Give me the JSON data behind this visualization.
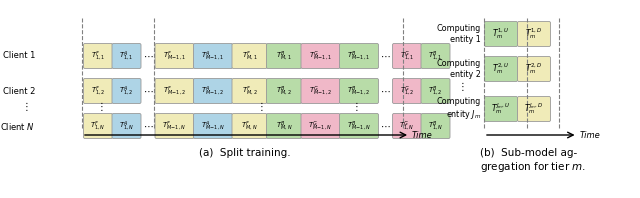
{
  "fig_width": 6.4,
  "fig_height": 1.98,
  "bg_color": "#ffffff",
  "panel_a": {
    "title": "(a)  Split training.",
    "color_F": "#f0ebb8",
    "color_A": "#aed4e6",
    "color_B": "#b8dca8",
    "color_G": "#f0b8c8",
    "rows": [
      {
        "label": "Client 1",
        "blocks": [
          {
            "text": "$T_{1,1}^{F}$",
            "color": "F"
          },
          {
            "text": "$T_{1,1}^{A}$",
            "color": "A"
          },
          {
            "dots": true
          },
          {
            "text": "$T_{M\\!-\\!1,1}^{F}$",
            "color": "F"
          },
          {
            "text": "$T_{M\\!-\\!1,1}^{A}$",
            "color": "A"
          },
          {
            "text": "$T_{M,1}^{F}$",
            "color": "F"
          },
          {
            "text": "$T_{M,1}^{B}$",
            "color": "B"
          },
          {
            "text": "$T_{M\\!-\\!1,1}^{G}$",
            "color": "G"
          },
          {
            "text": "$T_{M\\!-\\!1,1}^{B}$",
            "color": "B"
          },
          {
            "dots": true
          },
          {
            "text": "$T_{1,1}^{G}$",
            "color": "G"
          },
          {
            "text": "$T_{1,1}^{B}$",
            "color": "B"
          }
        ]
      },
      {
        "label": "Client 2",
        "blocks": [
          {
            "text": "$T_{1,2}^{F}$",
            "color": "F"
          },
          {
            "text": "$T_{1,2}^{A}$",
            "color": "A"
          },
          {
            "dots": true
          },
          {
            "text": "$T_{M\\!-\\!1,2}^{F}$",
            "color": "F"
          },
          {
            "text": "$T_{M\\!-\\!1,2}^{A}$",
            "color": "A"
          },
          {
            "text": "$T_{M,2}^{F}$",
            "color": "F"
          },
          {
            "text": "$T_{M,2}^{B}$",
            "color": "B"
          },
          {
            "text": "$T_{M\\!-\\!1,2}^{G}$",
            "color": "G"
          },
          {
            "text": "$T_{M\\!-\\!1,2}^{B}$",
            "color": "B"
          },
          {
            "dots": true
          },
          {
            "text": "$T_{1,2}^{G}$",
            "color": "G"
          },
          {
            "text": "$T_{1,2}^{B}$",
            "color": "B"
          }
        ]
      },
      {
        "label": "Client $N$",
        "blocks": [
          {
            "text": "$T_{1,N}^{F}$",
            "color": "F"
          },
          {
            "text": "$T_{1,N}^{A}$",
            "color": "A"
          },
          {
            "dots": true
          },
          {
            "text": "$T_{M\\!-\\!1,N}^{F}$",
            "color": "F"
          },
          {
            "text": "$T_{M\\!-\\!1,N}^{A}$",
            "color": "A"
          },
          {
            "text": "$T_{M,N}^{F}$",
            "color": "F"
          },
          {
            "text": "$T_{M,N}^{B}$",
            "color": "B"
          },
          {
            "text": "$T_{M\\!-\\!1,N}^{G}$",
            "color": "G"
          },
          {
            "text": "$T_{M\\!-\\!1,N}^{B}$",
            "color": "B"
          },
          {
            "dots": true
          },
          {
            "text": "$T_{1,N}^{G}$",
            "color": "G"
          },
          {
            "text": "$T_{1,N}^{B}$",
            "color": "B"
          }
        ]
      }
    ]
  },
  "panel_b": {
    "title": "(b)  Sub-model ag-\ngregation for tier $m$.",
    "color_U": "#b8dca8",
    "color_D": "#f0ebb8",
    "rows": [
      {
        "label": "Computing\nentity 1",
        "blocks": [
          {
            "text": "$T_m^{1,U}$",
            "color": "U"
          },
          {
            "text": "$T_m^{1,D}$",
            "color": "D"
          }
        ]
      },
      {
        "label": "Computing\nentity 2",
        "blocks": [
          {
            "text": "$T_m^{2,U}$",
            "color": "U"
          },
          {
            "text": "$T_m^{2,D}$",
            "color": "D"
          }
        ]
      },
      {
        "label": "Computing\nentity $J_m$",
        "blocks": [
          {
            "text": "$T_m^{J_m,U}$",
            "color": "U"
          },
          {
            "text": "$T_m^{J_m,D}$",
            "color": "D"
          }
        ]
      }
    ]
  }
}
